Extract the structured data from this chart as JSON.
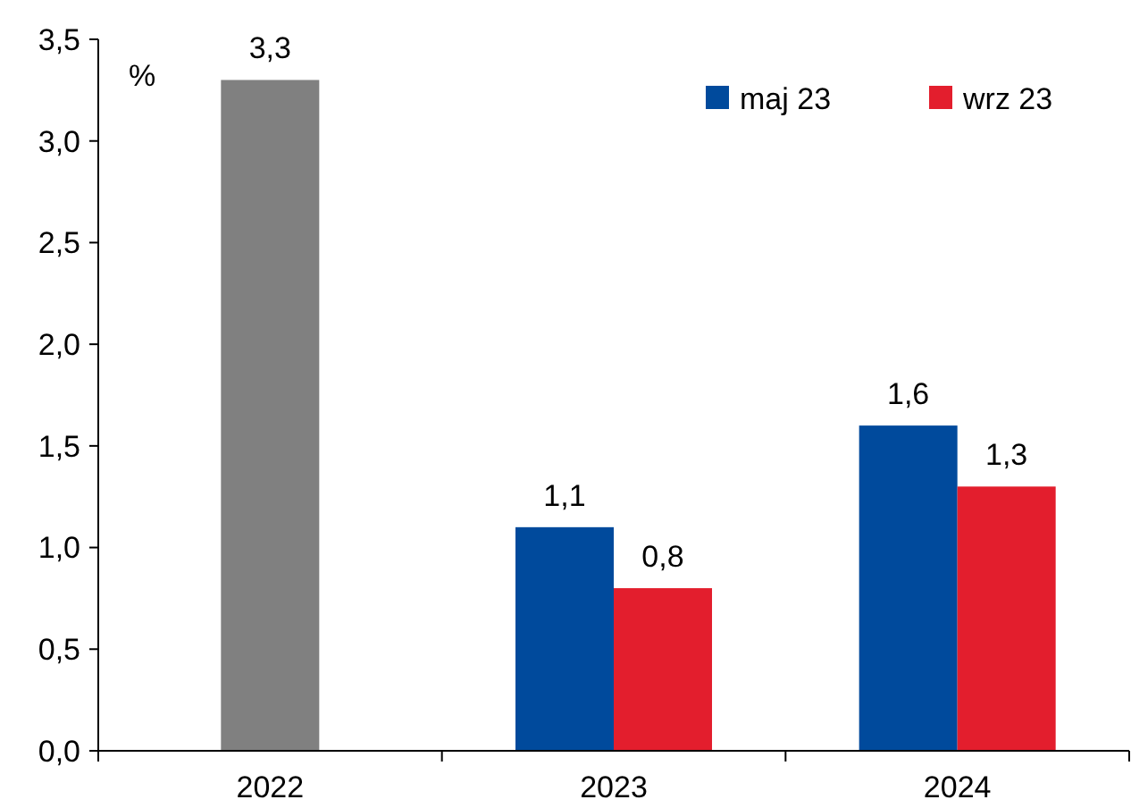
{
  "chart_data": {
    "type": "bar",
    "ylabel": "%",
    "categories": [
      "2022",
      "2023",
      "2024"
    ],
    "series": [
      {
        "color": "#808080",
        "values": [
          3.3,
          null,
          null
        ],
        "value_labels": [
          "3,3",
          null,
          null
        ]
      },
      {
        "name": "maj 23",
        "color": "#004a9c",
        "values": [
          null,
          1.1,
          1.6
        ],
        "value_labels": [
          null,
          "1,1",
          "1,6"
        ]
      },
      {
        "name": "wrz 23",
        "color": "#e31e2d",
        "values": [
          null,
          0.8,
          1.3
        ],
        "value_labels": [
          null,
          "0,8",
          "1,3"
        ]
      }
    ],
    "ylim": [
      0,
      3.5
    ],
    "yticks": [
      {
        "value": 0,
        "label": "0,0"
      },
      {
        "value": 0.5,
        "label": "0,5"
      },
      {
        "value": 1,
        "label": "1,0"
      },
      {
        "value": 1.5,
        "label": "1,5"
      },
      {
        "value": 2,
        "label": "2,0"
      },
      {
        "value": 2.5,
        "label": "2,5"
      },
      {
        "value": 3,
        "label": "3,0"
      },
      {
        "value": 3.5,
        "label": "3,5"
      }
    ],
    "legend": "top right"
  }
}
